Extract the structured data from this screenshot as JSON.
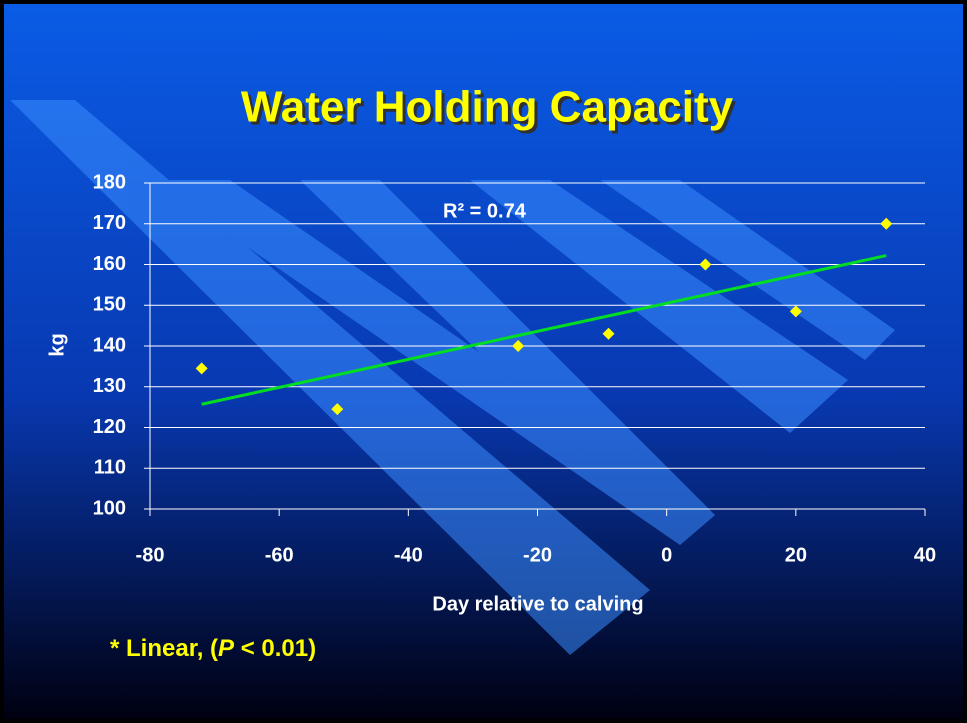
{
  "chart_data": {
    "type": "scatter",
    "title": "Water Holding Capacity",
    "x_label": "Day relative to calving",
    "y_label": "kg",
    "annotation": "R² = 0.74",
    "footnote": [
      "* Linear, (",
      "P",
      " < 0.01)"
    ],
    "x": [
      -72,
      -51,
      -23,
      -9,
      6,
      20,
      34
    ],
    "values": [
      134.5,
      124.5,
      140,
      143,
      160,
      148.5,
      170
    ],
    "color": "#ffff00",
    "trendline": {
      "x": [
        -72,
        34
      ],
      "values": [
        125.7,
        162.2
      ],
      "color": "#00dd22"
    },
    "xlim": [
      -80,
      40
    ],
    "xticks": [
      -80,
      -60,
      -40,
      -20,
      0,
      20,
      40
    ],
    "ylim": [
      100,
      180
    ],
    "yticks": [
      100,
      110,
      120,
      130,
      140,
      150,
      160,
      170,
      180
    ],
    "grid": true
  }
}
